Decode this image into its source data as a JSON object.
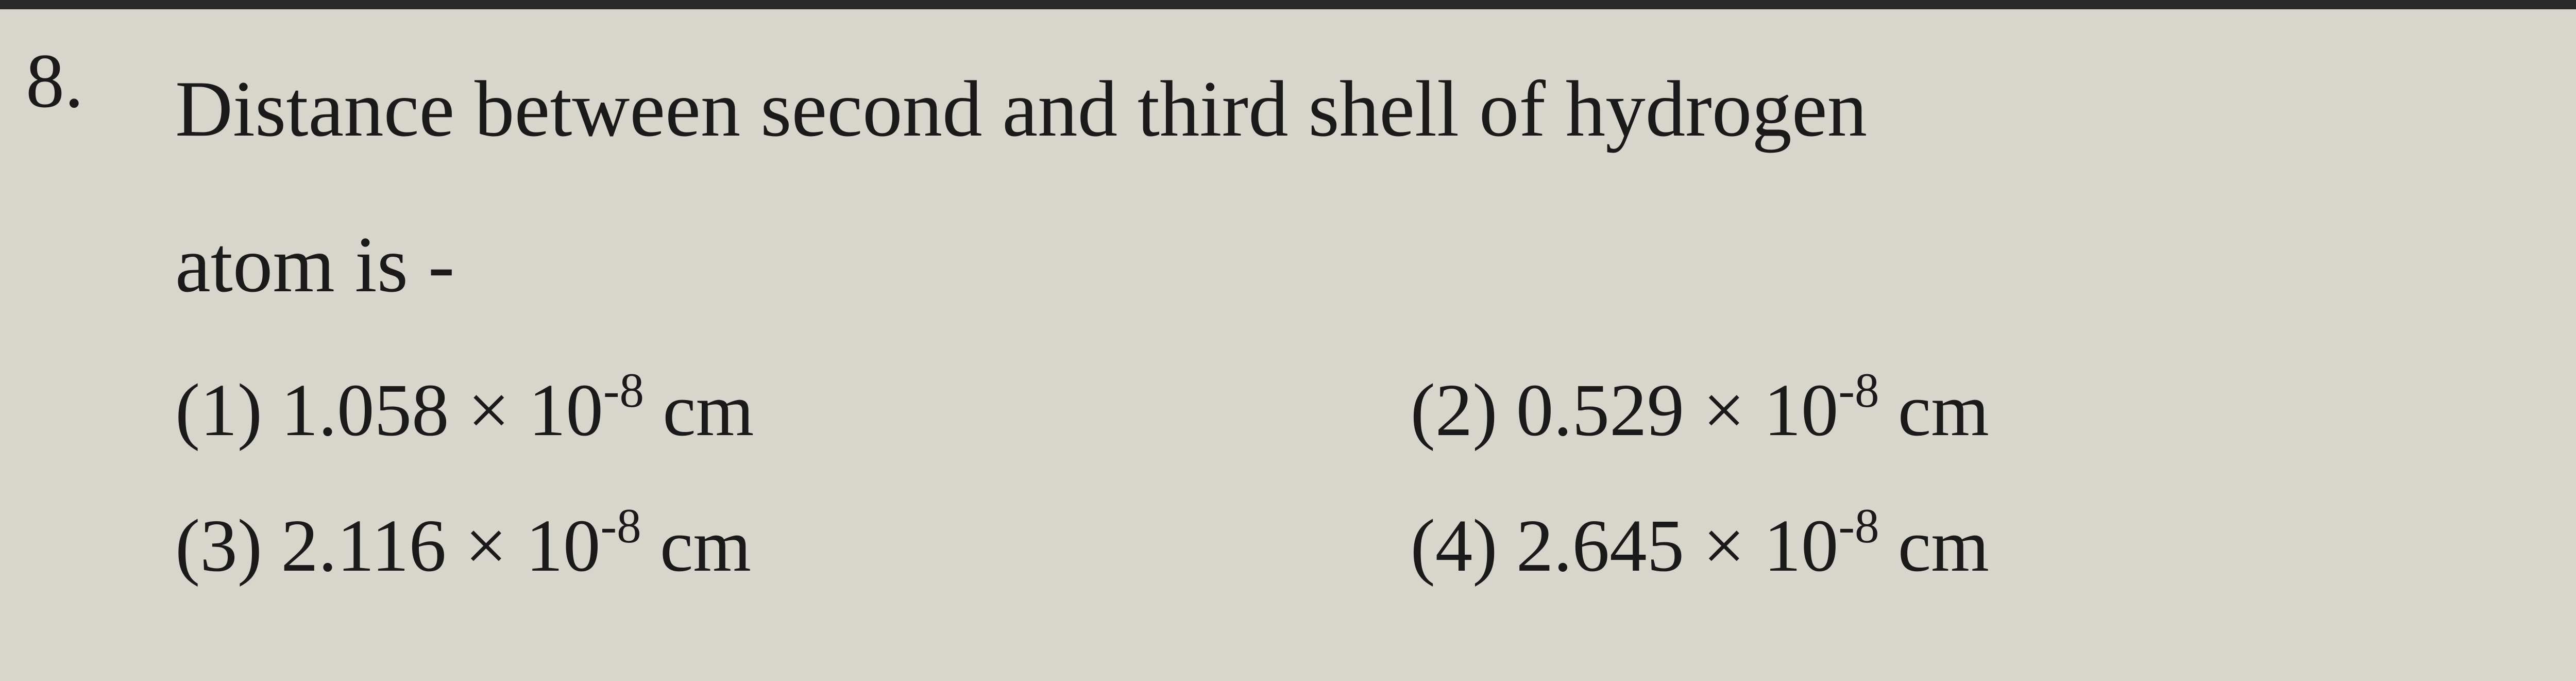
{
  "page": {
    "background_color": "#d8d5cc",
    "text_color": "#1a1a1a",
    "border_color": "#2a2a2a"
  },
  "question": {
    "number": "8.",
    "text_line1": "Distance between second and third shell of hydrogen",
    "text_line2": "atom is -"
  },
  "options": {
    "opt1": {
      "label": "(1) ",
      "value": "1.058",
      "multiply": " × 10",
      "exponent": "-8",
      "unit": " cm"
    },
    "opt2": {
      "label": "(2) ",
      "value": "0.529",
      "multiply": " × 10",
      "exponent": "-8",
      "unit": " cm"
    },
    "opt3": {
      "label": "(3) ",
      "value": "2.116",
      "multiply": " × 10",
      "exponent": "-8",
      "unit": " cm"
    },
    "opt4": {
      "label": "(4) ",
      "value": "2.645",
      "multiply": " × 10",
      "exponent": "-8",
      "unit": " cm"
    }
  }
}
